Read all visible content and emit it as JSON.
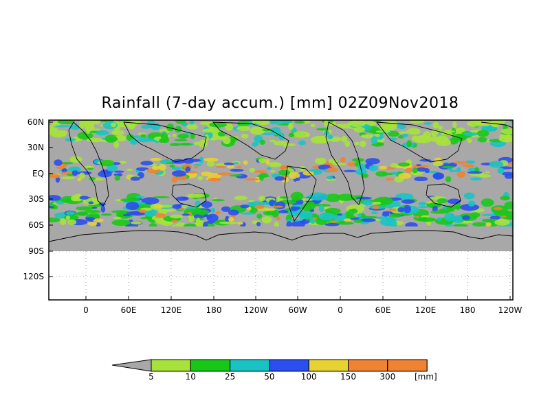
{
  "title": "Rainfall (7-day accum.) [mm] 02Z09Nov2018",
  "y_ticks": [
    "60N",
    "30N",
    "EQ",
    "30S",
    "60S",
    "90S",
    "120S"
  ],
  "x_ticks": [
    "0",
    "60E",
    "120E",
    "180",
    "120W",
    "60W",
    "0",
    "60E",
    "120E",
    "180",
    "120W"
  ],
  "colorbar": {
    "unit": "[mm]",
    "levels": [
      "5",
      "10",
      "25",
      "50",
      "100",
      "150",
      "300"
    ],
    "colors": [
      "#a8a8a8",
      "#a6e23a",
      "#18c818",
      "#19c3c3",
      "#2a4ef0",
      "#e6d232",
      "#f08232",
      "#f03c3c"
    ]
  },
  "colors": {
    "land_gray": "#a8a8a8",
    "coast": "#000000",
    "grid": "#9a9a9a"
  }
}
